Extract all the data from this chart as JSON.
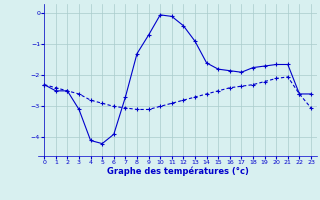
{
  "title": "Graphe des températures (°c)",
  "line1_x": [
    0,
    1,
    2,
    3,
    4,
    5,
    6,
    7,
    8,
    9,
    10,
    11,
    12,
    13,
    14,
    15,
    16,
    17,
    18,
    19,
    20,
    21,
    22,
    23
  ],
  "line1_y": [
    -2.3,
    -2.5,
    -2.5,
    -3.1,
    -4.1,
    -4.2,
    -3.9,
    -2.7,
    -1.3,
    -0.7,
    -0.05,
    -0.1,
    -0.4,
    -0.9,
    -1.6,
    -1.8,
    -1.85,
    -1.9,
    -1.75,
    -1.7,
    -1.65,
    -1.65,
    -2.6,
    -2.6
  ],
  "line2_x": [
    0,
    1,
    2,
    3,
    4,
    5,
    6,
    7,
    8,
    9,
    10,
    11,
    12,
    13,
    14,
    15,
    16,
    17,
    18,
    19,
    20,
    21,
    22,
    23
  ],
  "line2_y": [
    -2.3,
    -2.4,
    -2.5,
    -2.6,
    -2.8,
    -2.9,
    -3.0,
    -3.05,
    -3.1,
    -3.1,
    -3.0,
    -2.9,
    -2.8,
    -2.7,
    -2.6,
    -2.5,
    -2.4,
    -2.35,
    -2.3,
    -2.2,
    -2.1,
    -2.05,
    -2.6,
    -3.05
  ],
  "line_color": "#0000cc",
  "bg_color": "#d8f0f0",
  "grid_color": "#aacccc",
  "ylim": [
    -4.6,
    0.3
  ],
  "xlim": [
    -0.5,
    23.5
  ],
  "yticks": [
    0,
    -1,
    -2,
    -3,
    -4
  ],
  "xticks": [
    0,
    1,
    2,
    3,
    4,
    5,
    6,
    7,
    8,
    9,
    10,
    11,
    12,
    13,
    14,
    15,
    16,
    17,
    18,
    19,
    20,
    21,
    22,
    23
  ]
}
